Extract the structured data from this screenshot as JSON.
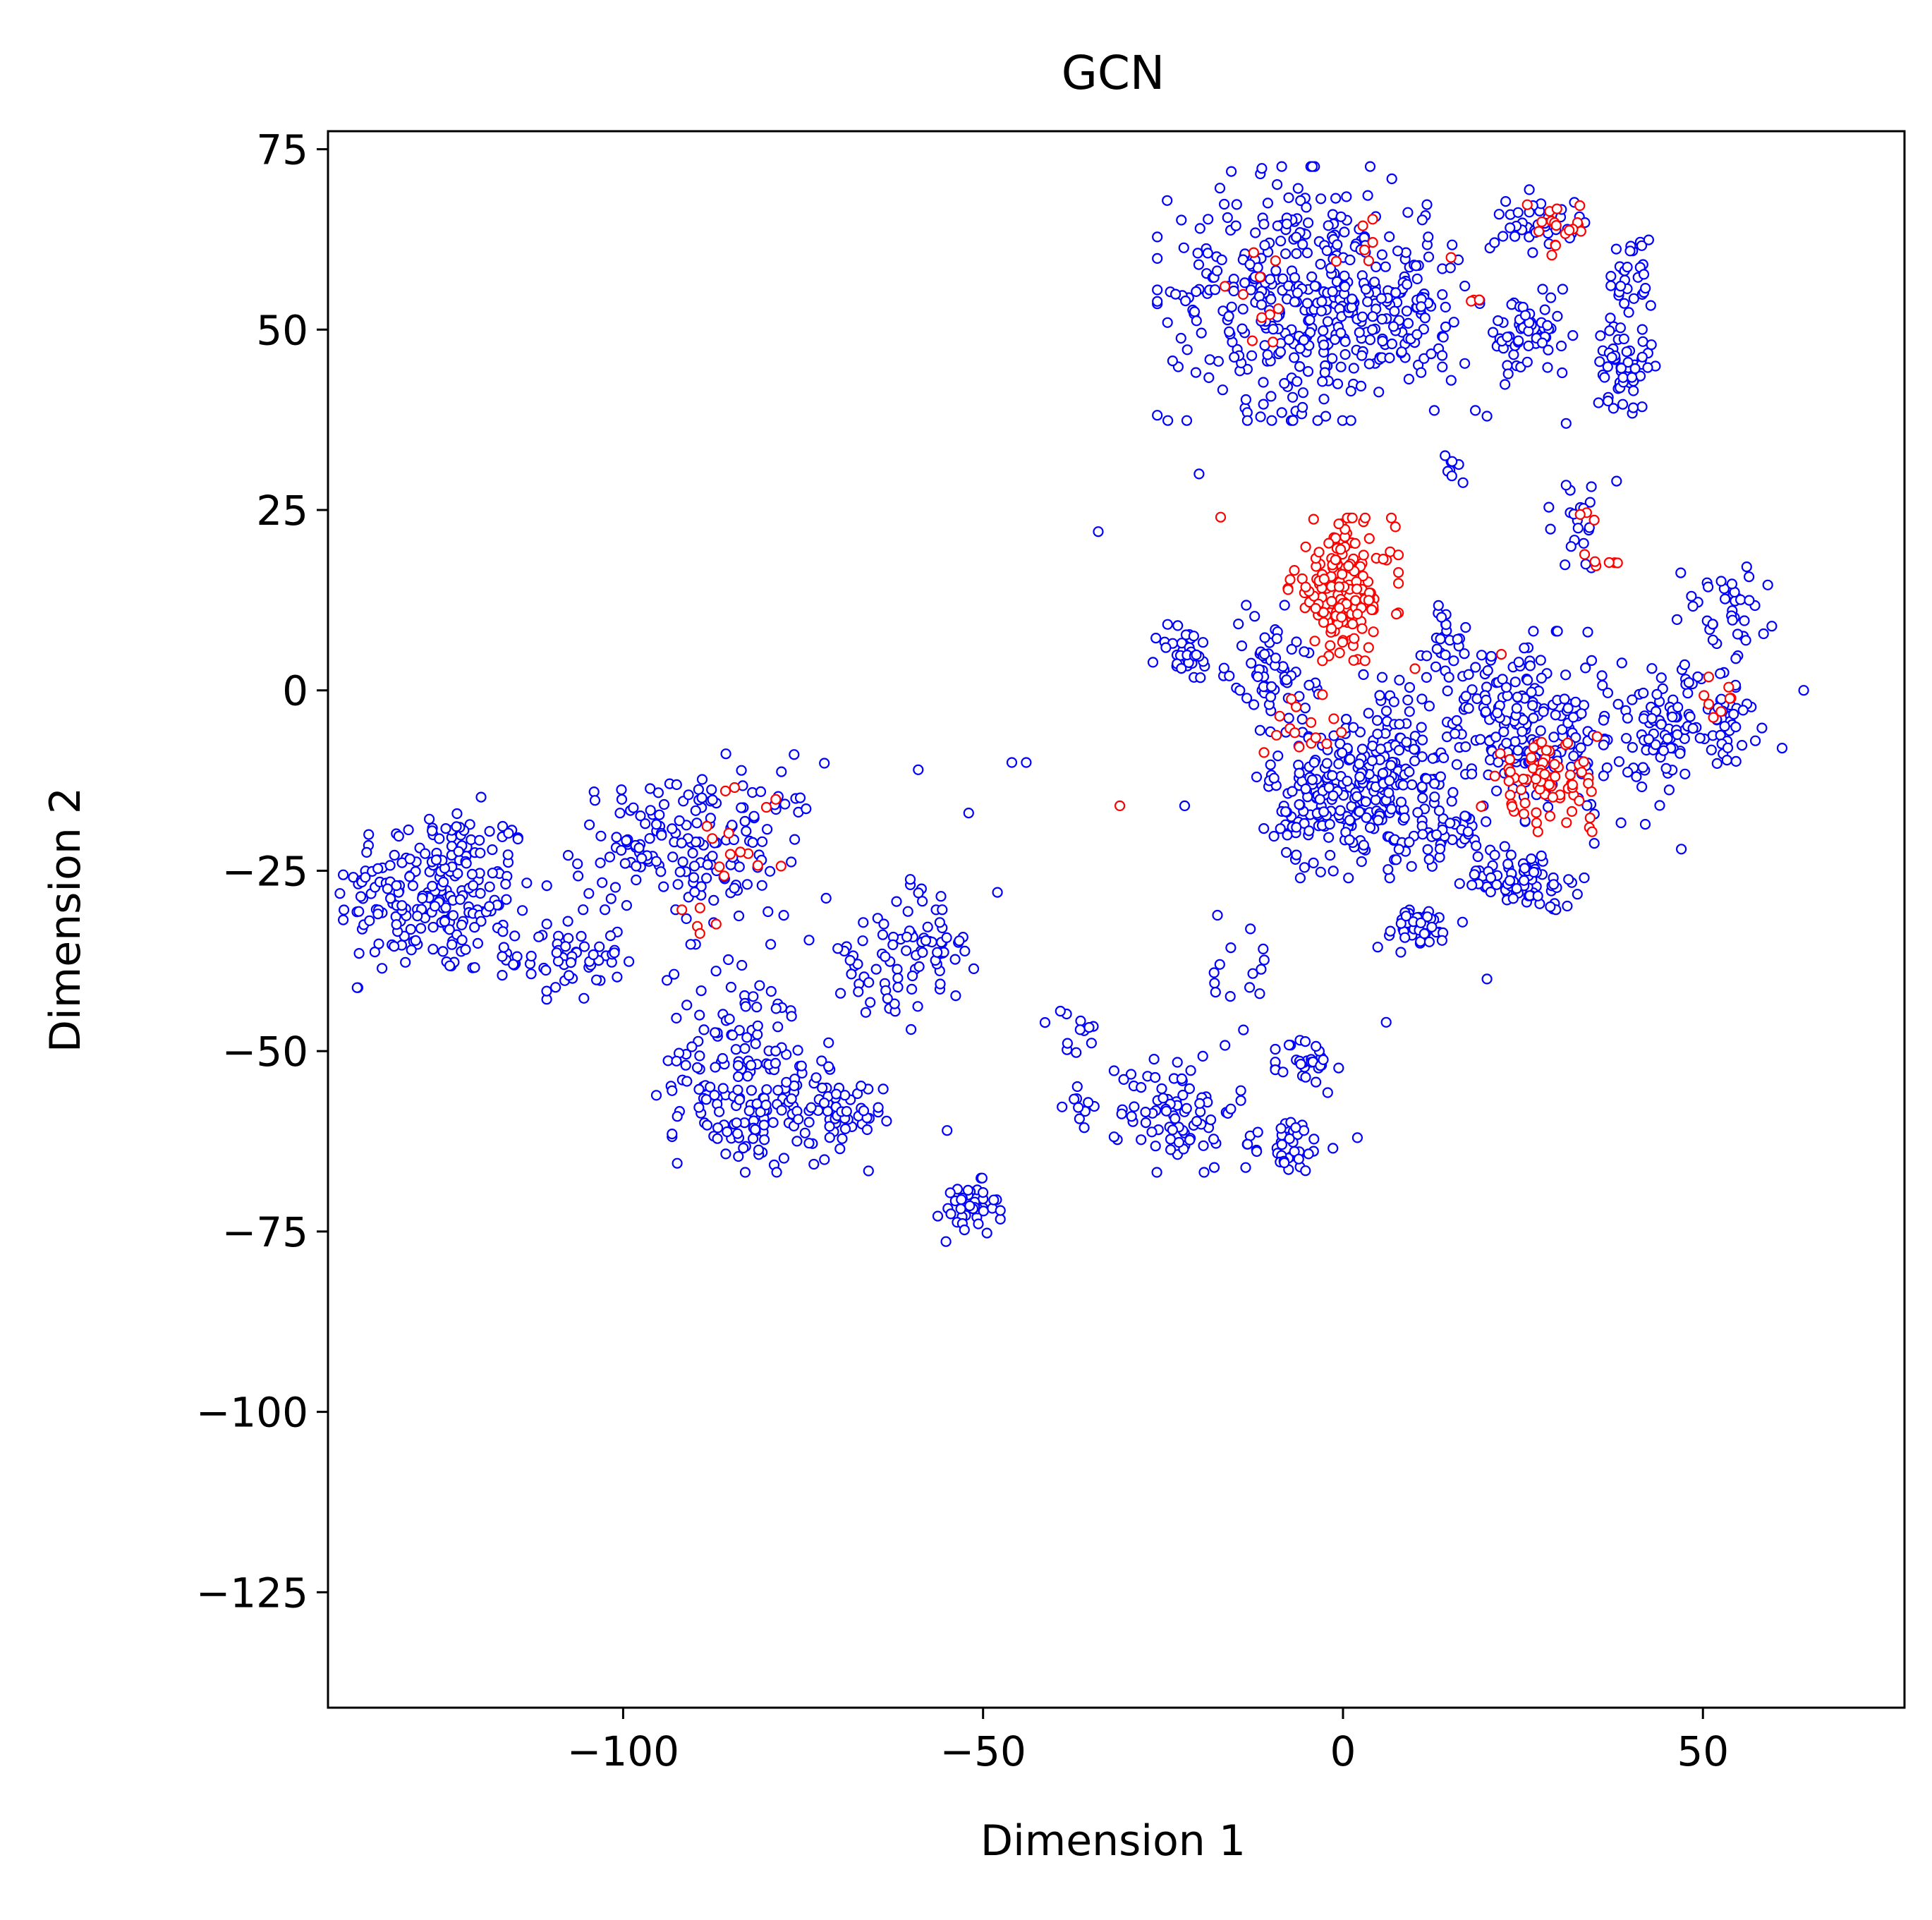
{
  "chart_data": {
    "type": "scatter",
    "title": "GCN",
    "xlabel": "Dimension 1",
    "ylabel": "Dimension 2",
    "xlim": [
      -141,
      78
    ],
    "ylim": [
      -141,
      77.5
    ],
    "xticks": [
      -100,
      -50,
      0,
      50
    ],
    "xtick_labels": [
      "−100",
      "−50",
      "0",
      "50"
    ],
    "yticks": [
      75,
      50,
      25,
      0,
      -25,
      -50,
      -75,
      -100,
      -125
    ],
    "ytick_labels": [
      "75",
      "50",
      "25",
      "0",
      "−25",
      "−50",
      "−75",
      "−100",
      "−125"
    ],
    "grid": false,
    "legend": "none",
    "marker": "hollow circle",
    "colors": {
      "class_a": "#0000ff",
      "class_b": "#ff0000"
    },
    "clusters_class_a": [
      {
        "cx": -126,
        "cy": -28,
        "sx": 7,
        "sy": 6,
        "n": 230
      },
      {
        "cx": -108,
        "cy": -37,
        "sx": 4,
        "sy": 3,
        "n": 60
      },
      {
        "cx": -95,
        "cy": -21,
        "sx": 6,
        "sy": 4,
        "n": 90
      },
      {
        "cx": -85,
        "cy": -22,
        "sx": 6,
        "sy": 6,
        "n": 80
      },
      {
        "cx": -83,
        "cy": -50,
        "sx": 6,
        "sy": 6,
        "n": 90
      },
      {
        "cx": -80,
        "cy": -58,
        "sx": 6,
        "sy": 4,
        "n": 110
      },
      {
        "cx": -70,
        "cy": -60,
        "sx": 3,
        "sy": 3,
        "n": 35
      },
      {
        "cx": -65,
        "cy": -38,
        "sx": 4,
        "sy": 4,
        "n": 35
      },
      {
        "cx": -57,
        "cy": -35,
        "sx": 3,
        "sy": 4,
        "n": 50
      },
      {
        "cx": -52,
        "cy": -72,
        "sx": 2,
        "sy": 2,
        "n": 40
      },
      {
        "cx": -37,
        "cy": -48,
        "sx": 2,
        "sy": 2,
        "n": 12
      },
      {
        "cx": -37,
        "cy": -57,
        "sx": 2,
        "sy": 2,
        "n": 12
      },
      {
        "cx": -23,
        "cy": -58,
        "sx": 4,
        "sy": 4,
        "n": 80
      },
      {
        "cx": -8,
        "cy": -63,
        "sx": 3,
        "sy": 2,
        "n": 40
      },
      {
        "cx": -5,
        "cy": -52,
        "sx": 2,
        "sy": 2,
        "n": 30
      },
      {
        "cx": -15,
        "cy": -38,
        "sx": 3,
        "sy": 5,
        "n": 15
      },
      {
        "cx": -22,
        "cy": 5,
        "sx": 2,
        "sy": 2,
        "n": 35
      },
      {
        "cx": -6,
        "cy": 55,
        "sx": 9,
        "sy": 8,
        "n": 360
      },
      {
        "cx": 8,
        "cy": 52,
        "sx": 5,
        "sy": 6,
        "n": 100
      },
      {
        "cx": 27,
        "cy": 65,
        "sx": 3,
        "sy": 2,
        "n": 40
      },
      {
        "cx": 26,
        "cy": 49,
        "sx": 3,
        "sy": 3,
        "n": 60
      },
      {
        "cx": 40,
        "cy": 57,
        "sx": 1.5,
        "sy": 3,
        "n": 30
      },
      {
        "cx": 39,
        "cy": 45,
        "sx": 2,
        "sy": 3,
        "n": 55
      },
      {
        "cx": -10,
        "cy": 3,
        "sx": 3,
        "sy": 4,
        "n": 70
      },
      {
        "cx": 0,
        "cy": -15,
        "sx": 5,
        "sy": 5,
        "n": 220
      },
      {
        "cx": 8,
        "cy": -7,
        "sx": 4,
        "sy": 5,
        "n": 80
      },
      {
        "cx": 10,
        "cy": -33,
        "sx": 3,
        "sy": 1.5,
        "n": 50
      },
      {
        "cx": 14,
        "cy": -20,
        "sx": 3,
        "sy": 2,
        "n": 40
      },
      {
        "cx": 25,
        "cy": -26,
        "sx": 4,
        "sy": 2,
        "n": 80
      },
      {
        "cx": 23,
        "cy": -5,
        "sx": 5,
        "sy": 6,
        "n": 160
      },
      {
        "cx": 33,
        "cy": -8,
        "sx": 5,
        "sy": 6,
        "n": 60
      },
      {
        "cx": 45,
        "cy": -5,
        "sx": 4,
        "sy": 4,
        "n": 100
      },
      {
        "cx": 53,
        "cy": 11,
        "sx": 3,
        "sy": 3,
        "n": 40
      },
      {
        "cx": 54,
        "cy": -4,
        "sx": 2,
        "sy": 3,
        "n": 30
      },
      {
        "cx": 33,
        "cy": 23,
        "sx": 2,
        "sy": 3,
        "n": 20
      },
      {
        "cx": 14,
        "cy": 7,
        "sx": 3,
        "sy": 4,
        "n": 25
      },
      {
        "cx": 15,
        "cy": 30,
        "sx": 1,
        "sy": 2,
        "n": 8
      }
    ],
    "clusters_class_b": [
      {
        "cx": 0,
        "cy": 14,
        "sx": 3.5,
        "sy": 4.5,
        "n": 160
      },
      {
        "cx": 28,
        "cy": -13,
        "sx": 4,
        "sy": 3,
        "n": 75
      },
      {
        "cx": 30,
        "cy": 64,
        "sx": 2,
        "sy": 2,
        "n": 18
      },
      {
        "cx": -5,
        "cy": -5,
        "sx": 3,
        "sy": 2,
        "n": 15
      },
      {
        "cx": -12,
        "cy": 53,
        "sx": 2,
        "sy": 4,
        "n": 10
      },
      {
        "cx": -84,
        "cy": -22,
        "sx": 5,
        "sy": 4,
        "n": 14
      },
      {
        "cx": -89,
        "cy": -32,
        "sx": 2,
        "sy": 1,
        "n": 5
      },
      {
        "cx": 52,
        "cy": -1,
        "sx": 1.5,
        "sy": 1.5,
        "n": 8
      },
      {
        "cx": 37,
        "cy": 17,
        "sx": 2,
        "sy": 1,
        "n": 6
      },
      {
        "cx": 34,
        "cy": 24,
        "sx": 1,
        "sy": 0.5,
        "n": 3
      },
      {
        "cx": 3,
        "cy": 62,
        "sx": 3,
        "sy": 1.5,
        "n": 6
      },
      {
        "cx": 18,
        "cy": 54,
        "sx": 1,
        "sy": 0.5,
        "n": 3
      }
    ],
    "scattered_points": [
      {
        "x": -34,
        "y": 22,
        "class": "class_a"
      },
      {
        "x": -20,
        "y": 30,
        "class": "class_a"
      },
      {
        "x": -59,
        "y": -11,
        "class": "class_a"
      },
      {
        "x": -52,
        "y": -17,
        "class": "class_a"
      },
      {
        "x": -46,
        "y": -10,
        "class": "class_a"
      },
      {
        "x": -44,
        "y": -10,
        "class": "class_a"
      },
      {
        "x": -22,
        "y": -16,
        "class": "class_a"
      },
      {
        "x": -31,
        "y": -16,
        "class": "class_b"
      },
      {
        "x": -55,
        "y": -61,
        "class": "class_a"
      },
      {
        "x": -48,
        "y": -28,
        "class": "class_a"
      },
      {
        "x": -60,
        "y": -47,
        "class": "class_a"
      },
      {
        "x": 6,
        "y": -46,
        "class": "class_a"
      },
      {
        "x": 20,
        "y": -40,
        "class": "class_a"
      },
      {
        "x": 2,
        "y": -62,
        "class": "class_a"
      },
      {
        "x": 47,
        "y": -22,
        "class": "class_a"
      },
      {
        "x": 64,
        "y": 0,
        "class": "class_a"
      },
      {
        "x": 61,
        "y": -8,
        "class": "class_a"
      },
      {
        "x": 31,
        "y": 37,
        "class": "class_a"
      },
      {
        "x": 38,
        "y": 29,
        "class": "class_a"
      },
      {
        "x": 20,
        "y": 38,
        "class": "class_a"
      },
      {
        "x": -17,
        "y": 24,
        "class": "class_b"
      },
      {
        "x": 15,
        "y": 60,
        "class": "class_b"
      },
      {
        "x": 22,
        "y": 5,
        "class": "class_b"
      },
      {
        "x": 13,
        "y": -20,
        "class": "class_a"
      },
      {
        "x": -12,
        "y": -12,
        "class": "class_a"
      },
      {
        "x": -4,
        "y": -10,
        "class": "class_a"
      },
      {
        "x": 10,
        "y": 3,
        "class": "class_b"
      }
    ]
  }
}
